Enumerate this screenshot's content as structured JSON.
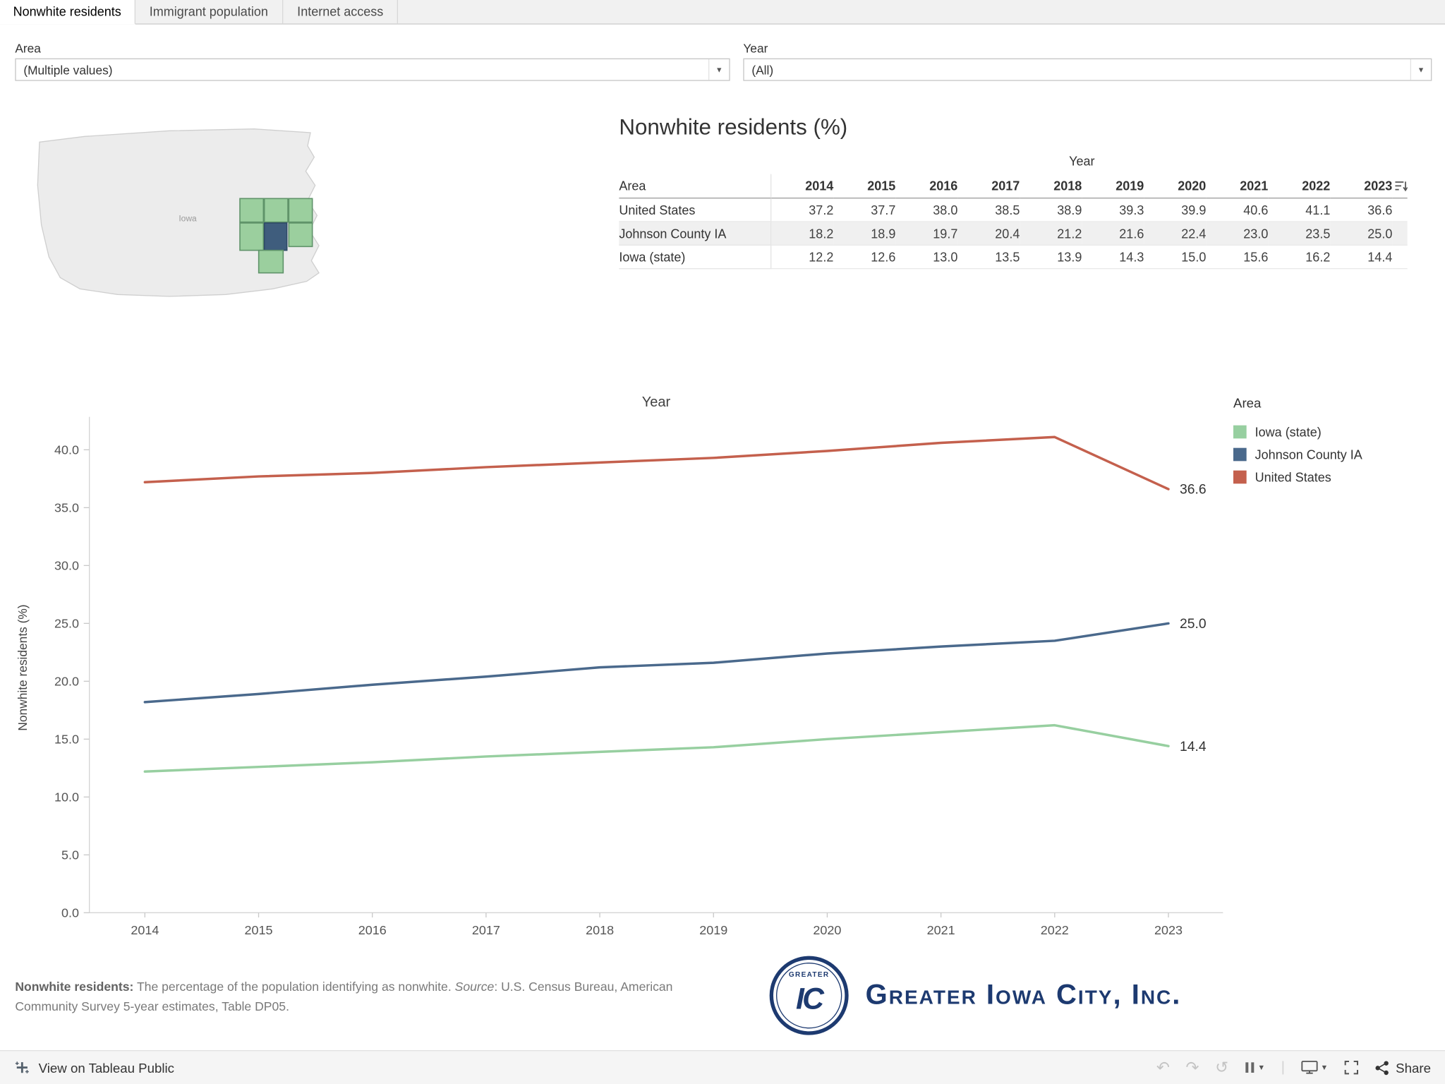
{
  "tabs": [
    {
      "label": "Nonwhite residents"
    },
    {
      "label": "Immigrant population"
    },
    {
      "label": "Internet access"
    }
  ],
  "filters": {
    "area": {
      "label": "Area",
      "value": "(Multiple values)"
    },
    "year": {
      "label": "Year",
      "value": "(All)"
    }
  },
  "icons": {
    "caret": "▼",
    "undo": "↶",
    "redo": "↷",
    "replay": "↺"
  },
  "map": {
    "state_label": "Iowa"
  },
  "table": {
    "title": "Nonwhite residents (%)",
    "year_header": "Year",
    "area_header": "Area",
    "years": [
      "2014",
      "2015",
      "2016",
      "2017",
      "2018",
      "2019",
      "2020",
      "2021",
      "2022",
      "2023"
    ],
    "rows": [
      {
        "area": "United States",
        "highlight": false,
        "values": [
          37.2,
          37.7,
          38.0,
          38.5,
          38.9,
          39.3,
          39.9,
          40.6,
          41.1,
          36.6
        ]
      },
      {
        "area": "Johnson County IA",
        "highlight": true,
        "values": [
          18.2,
          18.9,
          19.7,
          20.4,
          21.2,
          21.6,
          22.4,
          23.0,
          23.5,
          25.0
        ]
      },
      {
        "area": "Iowa (state)",
        "highlight": false,
        "values": [
          12.2,
          12.6,
          13.0,
          13.5,
          13.9,
          14.3,
          15.0,
          15.6,
          16.2,
          14.4
        ]
      }
    ]
  },
  "chart_data": {
    "type": "line",
    "xlabel": "Year",
    "ylabel": "Nonwhite residents (%)",
    "x": [
      "2014",
      "2015",
      "2016",
      "2017",
      "2018",
      "2019",
      "2020",
      "2021",
      "2022",
      "2023"
    ],
    "ylim": [
      0,
      43
    ],
    "yticks": [
      0,
      5,
      10,
      15,
      20,
      25,
      30,
      35,
      40
    ],
    "grid": false,
    "legend_title": "Area",
    "legend_position": "right",
    "series": [
      {
        "name": "Iowa (state)",
        "color": "#97cfa0",
        "values": [
          12.2,
          12.6,
          13.0,
          13.5,
          13.9,
          14.3,
          15.0,
          15.6,
          16.2,
          14.4
        ],
        "end_label": "14.4"
      },
      {
        "name": "Johnson County IA",
        "color": "#4a698c",
        "values": [
          18.2,
          18.9,
          19.7,
          20.4,
          21.2,
          21.6,
          22.4,
          23.0,
          23.5,
          25.0
        ],
        "end_label": "25.0"
      },
      {
        "name": "United States",
        "color": "#c4604d",
        "values": [
          37.2,
          37.7,
          38.0,
          38.5,
          38.9,
          39.3,
          39.9,
          40.6,
          41.1,
          36.6
        ],
        "end_label": "36.6"
      }
    ]
  },
  "colors": {
    "county_green": "#9bcf9e",
    "county_green_border": "#5f9369",
    "county_selected": "#3f5d7d",
    "county_selected_border": "#2e4a66",
    "navy": "#1d3a70"
  },
  "footnote": {
    "bold": "Nonwhite residents:",
    "text": " The percentage of the population identifying as nonwhite. ",
    "source_label": "Source",
    "source_text": ": U.S. Census Bureau, American Community Survey 5-year estimates, Table DP05."
  },
  "logo": {
    "badge_top": "GREATER",
    "badge_monogram": "IC",
    "company": "Greater Iowa City, Inc."
  },
  "footer_bar": {
    "view_text": "View on Tableau Public",
    "share_label": "Share"
  }
}
